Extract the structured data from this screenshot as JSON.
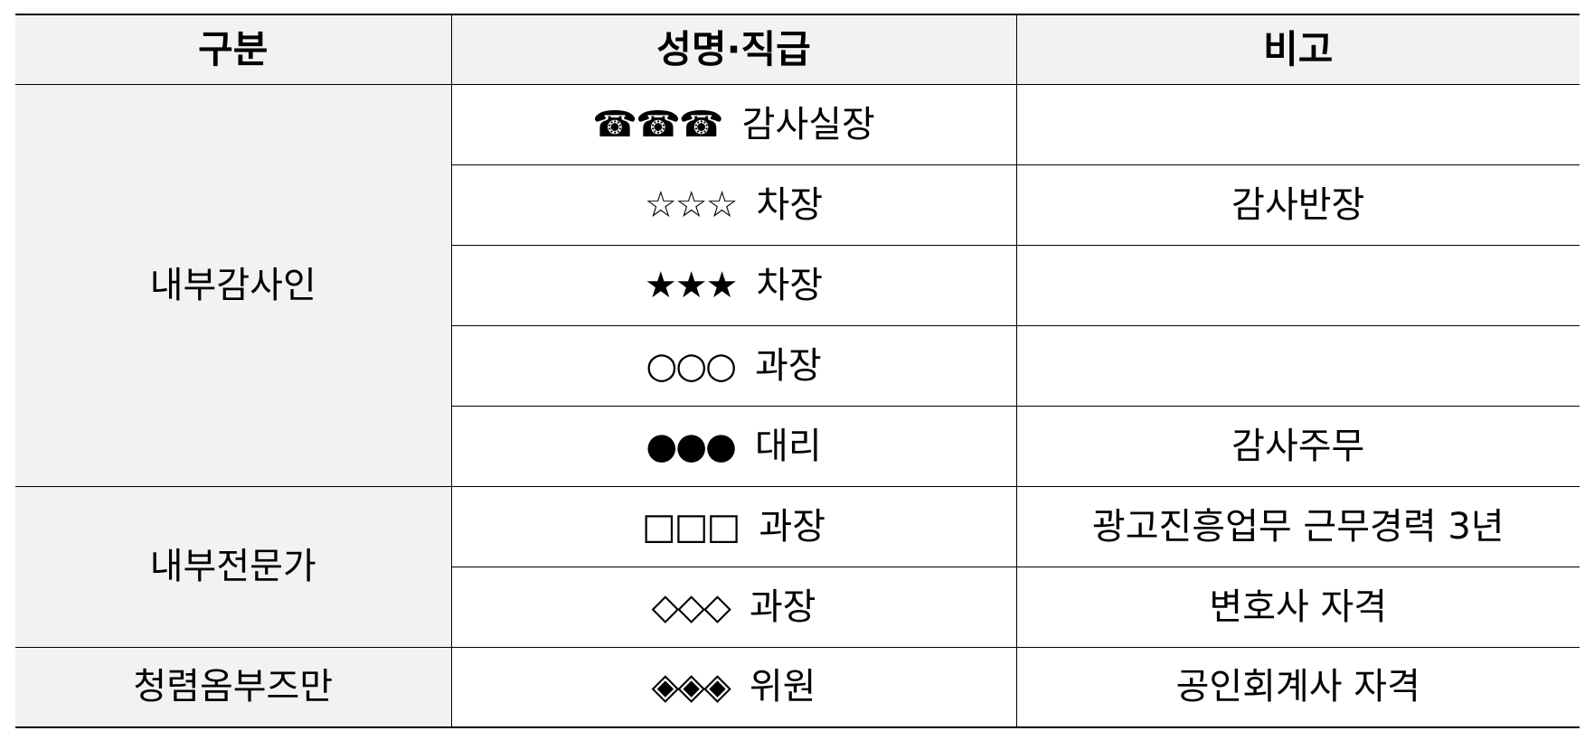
{
  "table": {
    "headers": [
      "구분",
      "성명·직급",
      "비고"
    ],
    "groups": [
      {
        "category": "내부감사인",
        "rows": [
          {
            "symbol": "☎☎☎",
            "title": "감사실장",
            "note": ""
          },
          {
            "symbol": "☆☆☆",
            "title": "차장",
            "note": "감사반장"
          },
          {
            "symbol": "★★★",
            "title": "차장",
            "note": ""
          },
          {
            "symbol": "○○○",
            "title": "과장",
            "note": ""
          },
          {
            "symbol": "●●●",
            "title": "대리",
            "note": "감사주무"
          }
        ]
      },
      {
        "category": "내부전문가",
        "rows": [
          {
            "symbol": "□□□",
            "title": "과장",
            "note": "광고진흥업무 근무경력 3년"
          },
          {
            "symbol": "◇◇◇",
            "title": "과장",
            "note": "변호사 자격"
          }
        ]
      },
      {
        "category": "청렴옴부즈만",
        "rows": [
          {
            "symbol": "◈◈◈",
            "title": "위원",
            "note": "공인회계사 자격"
          }
        ]
      }
    ]
  }
}
